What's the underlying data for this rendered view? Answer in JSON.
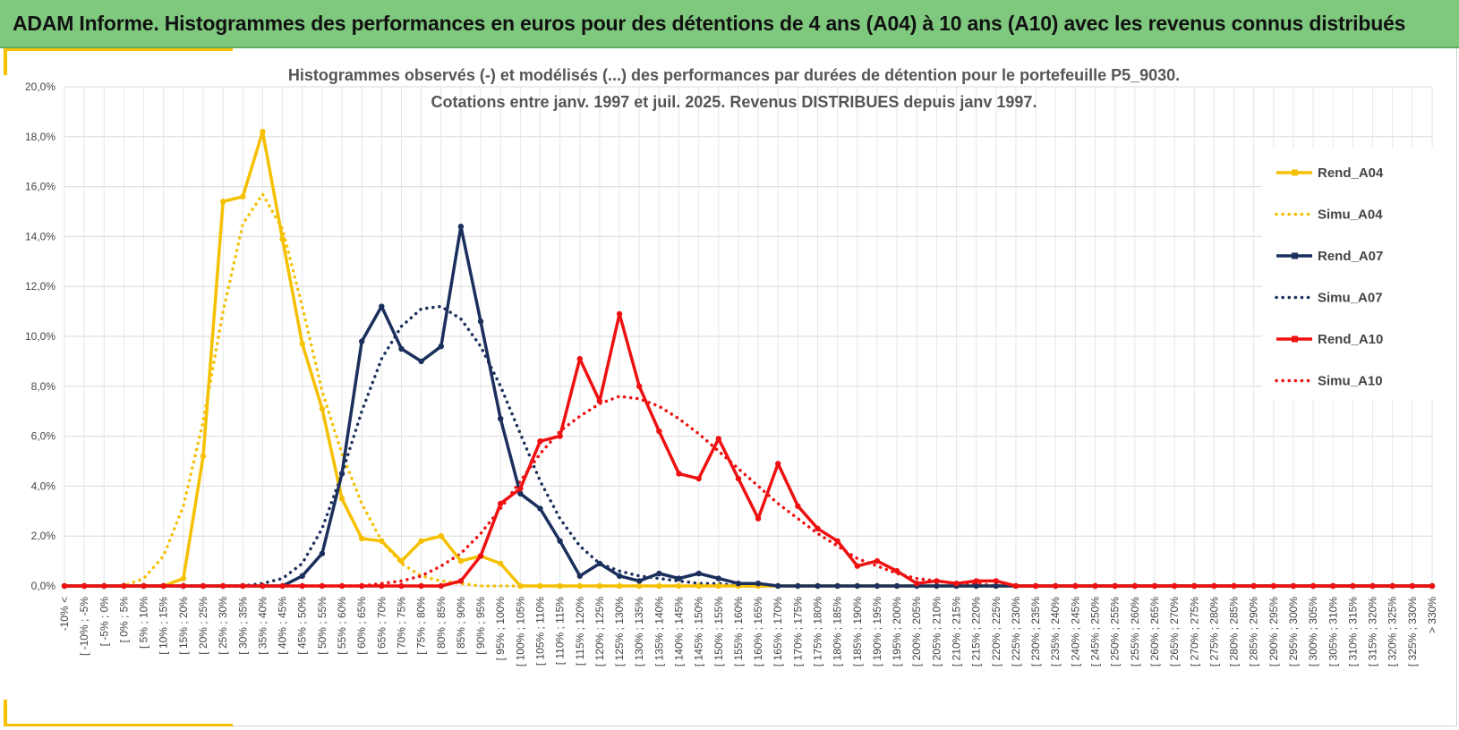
{
  "banner": {
    "title": "ADAM Informe. Histogrammes des performances en euros pour des détentions de 4 ans (A04) à 10 ans (A10) avec les revenus connus distribués"
  },
  "colors": {
    "banner_bg": "#7fc97f",
    "accent": "#f5c000",
    "a04": "#f5c000",
    "a07": "#1b2f5c",
    "a10": "#ee1111"
  },
  "chart_data": {
    "type": "line",
    "title": [
      "Histogrammes observés (-) et modélisés (...) des performances par durées de détention pour  le portefeuille P5_9030.",
      "Cotations entre janv. 1997 et juil. 2025. Revenus DISTRIBUES depuis janv 1997."
    ],
    "ylim": [
      0,
      20
    ],
    "ytick_labels": [
      "0,0%",
      "2,0%",
      "4,0%",
      "6,0%",
      "8,0%",
      "10,0%",
      "12,0%",
      "14,0%",
      "16,0%",
      "18,0%",
      "20,0%"
    ],
    "grid": true,
    "legend_position": "right",
    "categories": [
      "-10% <",
      "[ -10% ; -5%",
      "[ -5% ; 0%",
      "[ 0% ; 5%",
      "[ 5% ; 10%",
      "[ 10% ; 15%",
      "[ 15% ; 20%",
      "[ 20% ; 25%",
      "[ 25% ; 30%",
      "[ 30% ; 35%",
      "[ 35% ; 40%",
      "[ 40% ; 45%",
      "[ 45% ; 50%",
      "[ 50% ; 55%",
      "[ 55% ; 60%",
      "[ 60% ; 65%",
      "[ 65% ; 70%",
      "[ 70% ; 75%",
      "[ 75% ; 80%",
      "[ 80% ; 85%",
      "[ 85% ; 90%",
      "[ 90% ; 95%",
      "[ 95% ; 100%",
      "[ 100% ; 105%",
      "[ 105% ; 110%",
      "[ 110% ; 115%",
      "[ 115% ; 120%",
      "[ 120% ; 125%",
      "[ 125% ; 130%",
      "[ 130% ; 135%",
      "[ 135% ; 140%",
      "[ 140% ; 145%",
      "[ 145% ; 150%",
      "[ 150% ; 155%",
      "[ 155% ; 160%",
      "[ 160% ; 165%",
      "[ 165% ; 170%",
      "[ 170% ; 175%",
      "[ 175% ; 180%",
      "[ 180% ; 185%",
      "[ 185% ; 190%",
      "[ 190% ; 195%",
      "[ 195% ; 200%",
      "[ 200% ; 205%",
      "[ 205% ; 210%",
      "[ 210% ; 215%",
      "[ 215% ; 220%",
      "[ 220% ; 225%",
      "[ 225% ; 230%",
      "[ 230% ; 235%",
      "[ 235% ; 240%",
      "[ 240% ; 245%",
      "[ 245% ; 250%",
      "[ 250% ; 255%",
      "[ 255% ; 260%",
      "[ 260% ; 265%",
      "[ 265% ; 270%",
      "[ 270% ; 275%",
      "[ 275% ; 280%",
      "[ 280% ; 285%",
      "[ 285% ; 290%",
      "[ 290% ; 295%",
      "[ 295% ; 300%",
      "[ 300% ; 305%",
      "[ 305% ; 310%",
      "[ 310% ; 315%",
      "[ 315% ; 320%",
      "[ 320% ; 325%",
      "[ 325% ; 330%",
      "> 330%"
    ],
    "series": [
      {
        "name": "Rend_A04",
        "style": "solid",
        "color": "#f5c000",
        "values": [
          0,
          0,
          0,
          0,
          0,
          0,
          0.3,
          5.2,
          15.4,
          15.6,
          18.2,
          13.9,
          9.7,
          7.1,
          3.5,
          1.9,
          1.8,
          1.0,
          1.8,
          2.0,
          1.0,
          1.2,
          0.9,
          0,
          0,
          0,
          0,
          0,
          0,
          0,
          0,
          0,
          0,
          0,
          0,
          0,
          0,
          0,
          0,
          0,
          0,
          0,
          0,
          0,
          0,
          0,
          0,
          0,
          0,
          0,
          0,
          0,
          0,
          0,
          0,
          0,
          0,
          0,
          0,
          0,
          0,
          0,
          0,
          0,
          0,
          0,
          0,
          0,
          0,
          0
        ]
      },
      {
        "name": "Simu_A04",
        "style": "dotted",
        "color": "#f5c000",
        "values": [
          0,
          0,
          0,
          0,
          0.3,
          1.2,
          3.2,
          6.6,
          11.0,
          14.5,
          15.7,
          14.3,
          11.2,
          7.8,
          5.3,
          3.3,
          1.8,
          0.9,
          0.4,
          0.2,
          0.1,
          0,
          0,
          0,
          0,
          0,
          0,
          0,
          0,
          0,
          0,
          0,
          0,
          0,
          0,
          0,
          0,
          0,
          0,
          0,
          0,
          0,
          0,
          0,
          0,
          0,
          0,
          0,
          0,
          0,
          0,
          0,
          0,
          0,
          0,
          0,
          0,
          0,
          0,
          0,
          0,
          0,
          0,
          0,
          0,
          0,
          0,
          0,
          0,
          0
        ]
      },
      {
        "name": "Rend_A07",
        "style": "solid",
        "color": "#1b2f5c",
        "values": [
          0,
          0,
          0,
          0,
          0,
          0,
          0,
          0,
          0,
          0,
          0,
          0,
          0.4,
          1.3,
          4.5,
          9.8,
          11.2,
          9.5,
          9.0,
          9.6,
          14.4,
          10.6,
          6.7,
          3.7,
          3.1,
          1.8,
          0.4,
          0.9,
          0.4,
          0.2,
          0.5,
          0.3,
          0.5,
          0.3,
          0.1,
          0.1,
          0,
          0,
          0,
          0,
          0,
          0,
          0,
          0,
          0,
          0,
          0,
          0,
          0,
          0,
          0,
          0,
          0,
          0,
          0,
          0,
          0,
          0,
          0,
          0,
          0,
          0,
          0,
          0,
          0,
          0,
          0,
          0,
          0,
          0
        ]
      },
      {
        "name": "Simu_A07",
        "style": "dotted",
        "color": "#1b2f5c",
        "values": [
          0,
          0,
          0,
          0,
          0,
          0,
          0,
          0,
          0,
          0,
          0.1,
          0.3,
          0.9,
          2.3,
          4.5,
          7.0,
          9.1,
          10.4,
          11.1,
          11.2,
          10.7,
          9.6,
          8.0,
          6.1,
          4.2,
          2.7,
          1.6,
          0.9,
          0.6,
          0.4,
          0.3,
          0.2,
          0.1,
          0.1,
          0,
          0,
          0,
          0,
          0,
          0,
          0,
          0,
          0,
          0,
          0,
          0,
          0,
          0,
          0,
          0,
          0,
          0,
          0,
          0,
          0,
          0,
          0,
          0,
          0,
          0,
          0,
          0,
          0,
          0,
          0,
          0,
          0,
          0,
          0,
          0
        ]
      },
      {
        "name": "Rend_A10",
        "style": "solid",
        "color": "#ee1111",
        "values": [
          0,
          0,
          0,
          0,
          0,
          0,
          0,
          0,
          0,
          0,
          0,
          0,
          0,
          0,
          0,
          0,
          0,
          0,
          0,
          0,
          0.2,
          1.2,
          3.3,
          3.9,
          5.8,
          6.0,
          9.1,
          7.4,
          10.9,
          8.0,
          6.2,
          4.5,
          4.3,
          5.9,
          4.3,
          2.7,
          4.9,
          3.2,
          2.3,
          1.8,
          0.8,
          1.0,
          0.6,
          0.1,
          0.2,
          0.1,
          0.2,
          0.2,
          0,
          0,
          0,
          0,
          0,
          0,
          0,
          0,
          0,
          0,
          0,
          0,
          0,
          0,
          0,
          0,
          0,
          0,
          0,
          0,
          0,
          0
        ]
      },
      {
        "name": "Simu_A10",
        "style": "dotted",
        "color": "#ee1111",
        "values": [
          0,
          0,
          0,
          0,
          0,
          0,
          0,
          0,
          0,
          0,
          0,
          0,
          0,
          0,
          0,
          0,
          0.1,
          0.2,
          0.4,
          0.8,
          1.3,
          2.1,
          3.1,
          4.2,
          5.3,
          6.2,
          6.8,
          7.3,
          7.6,
          7.5,
          7.2,
          6.7,
          6.1,
          5.4,
          4.7,
          4.0,
          3.3,
          2.7,
          2.1,
          1.6,
          1.1,
          0.8,
          0.5,
          0.3,
          0.2,
          0.1,
          0.1,
          0,
          0,
          0,
          0,
          0,
          0,
          0,
          0,
          0,
          0,
          0,
          0,
          0,
          0,
          0,
          0,
          0,
          0,
          0,
          0,
          0,
          0,
          0
        ]
      }
    ]
  }
}
